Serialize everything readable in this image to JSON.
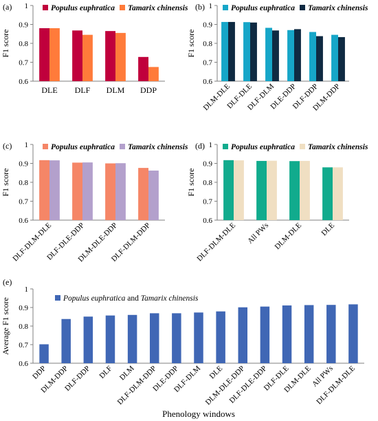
{
  "chart_data": [
    {
      "panel_label": "(a)",
      "type": "bar",
      "categories": [
        "DLE",
        "DLF",
        "DLM",
        "DDP"
      ],
      "series": [
        {
          "name": "Populus euphratica",
          "color": "#c0003c",
          "values": [
            0.88,
            0.868,
            0.865,
            0.728
          ]
        },
        {
          "name": "Tamarix chinensis",
          "color": "#ff7b3a",
          "values": [
            0.88,
            0.845,
            0.855,
            0.675
          ]
        }
      ],
      "ylabel": "F1 score",
      "ylim": [
        0.6,
        1
      ],
      "yticks": [
        "0.6",
        "0.7",
        "0.8",
        "0.9",
        "1"
      ],
      "rotate_xticks": false,
      "legend": "top"
    },
    {
      "panel_label": "(b)",
      "type": "bar",
      "categories": [
        "DLM-DLE",
        "DLF-DLE",
        "DLF-DLM",
        "DLE-DDP",
        "DLF-DDP",
        "DLM-DDP"
      ],
      "series": [
        {
          "name": "Populus euphratica",
          "color": "#16a6c8",
          "values": [
            0.913,
            0.912,
            0.882,
            0.87,
            0.86,
            0.845
          ]
        },
        {
          "name": "Tamarix chinensis",
          "color": "#0f2a42",
          "values": [
            0.913,
            0.91,
            0.868,
            0.875,
            0.838,
            0.833
          ]
        }
      ],
      "ylabel": "F1 score",
      "ylim": [
        0.6,
        1
      ],
      "yticks": [
        "0.6",
        "0.7",
        "0.8",
        "0.9",
        "1"
      ],
      "rotate_xticks": true,
      "legend": "top"
    },
    {
      "panel_label": "(c)",
      "type": "bar",
      "categories": [
        "DLF-DLM-DLE",
        "DLF-DLE-DDP",
        "DLM-DLE-DDP",
        "DLF-DLM-DDP"
      ],
      "series": [
        {
          "name": "Populus euphratica",
          "color": "#f58667",
          "values": [
            0.917,
            0.904,
            0.9,
            0.876
          ]
        },
        {
          "name": "Tamarix chinensis",
          "color": "#b3a0cc",
          "values": [
            0.916,
            0.905,
            0.901,
            0.862
          ]
        }
      ],
      "ylabel": "F1 score",
      "ylim": [
        0.6,
        1
      ],
      "yticks": [
        "0.6",
        "0.7",
        "0.8",
        "0.9",
        "1"
      ],
      "rotate_xticks": true,
      "legend": "top"
    },
    {
      "panel_label": "(d)",
      "type": "bar",
      "categories": [
        "DLF-DLM-DLE",
        "All PWs",
        "DLM-DLE",
        "DLE"
      ],
      "series": [
        {
          "name": "Populus euphratica",
          "color": "#11ab8d",
          "values": [
            0.917,
            0.913,
            0.912,
            0.879
          ]
        },
        {
          "name": "Tamarix chinensis",
          "color": "#f0dfc2",
          "values": [
            0.916,
            0.914,
            0.913,
            0.879
          ]
        }
      ],
      "ylabel": "F1 score",
      "ylim": [
        0.6,
        1
      ],
      "yticks": [
        "0.6",
        "0.7",
        "0.8",
        "0.9",
        "1"
      ],
      "rotate_xticks": true,
      "legend": "top"
    },
    {
      "panel_label": "(e)",
      "type": "bar",
      "categories": [
        "DDP",
        "DLM-DDP",
        "DLF-DDP",
        "DLF",
        "DLM",
        "DLF-DLM-DDP",
        "DLE-DDP",
        "DLF-DLM",
        "DLE",
        "DLM-DLE-DDP",
        "DLF-DLE-DDP",
        "DLF-DLE",
        "DLM-DLE",
        "All PWs",
        "DLF-DLM-DLE"
      ],
      "series": [
        {
          "name": "Populus euphratica and Tamarix chinensis",
          "color": "#4067b5",
          "values": [
            0.702,
            0.838,
            0.851,
            0.857,
            0.86,
            0.869,
            0.869,
            0.873,
            0.879,
            0.901,
            0.905,
            0.911,
            0.913,
            0.914,
            0.917
          ]
        }
      ],
      "ylabel": "Average F1 score",
      "xlabel": "Phenology windows",
      "ylim": [
        0.6,
        1
      ],
      "yticks": [
        "0.6",
        "0.7",
        "0.8",
        "0.9",
        "1"
      ],
      "rotate_xticks": true,
      "legend": "top"
    }
  ]
}
